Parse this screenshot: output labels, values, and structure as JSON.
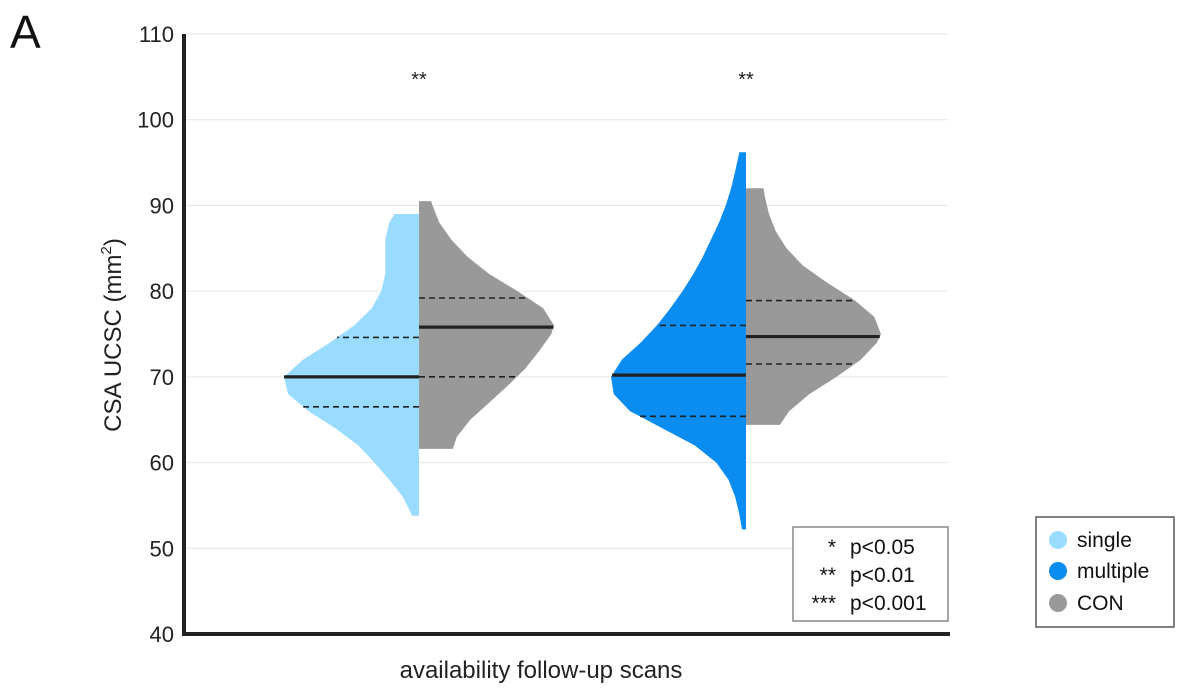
{
  "chart_data": {
    "type": "violin",
    "panel_label": "A",
    "xlabel": "availability follow-up scans",
    "ylabel_main": "CSA UCSC (mm",
    "ylabel_sup": "2",
    "ylabel_close": ")",
    "ylim": [
      40,
      110
    ],
    "yticks": [
      40,
      50,
      60,
      70,
      80,
      90,
      100,
      110
    ],
    "grid": true,
    "legend_position": "right",
    "colors": {
      "single": "#9adcff",
      "multiple": "#0a8cf0",
      "CON": "#999999"
    },
    "series": [
      {
        "name": "single",
        "color": "#9adcff"
      },
      {
        "name": "multiple",
        "color": "#0a8cf0"
      },
      {
        "name": "CON",
        "color": "#999999"
      }
    ],
    "groups": [
      {
        "significance": "**",
        "left": {
          "series": "single",
          "min": 53.8,
          "max": 89.0,
          "median": 70.0,
          "q1": 66.5,
          "q3": 74.6,
          "profile": [
            [
              53.8,
              0.05
            ],
            [
              56,
              0.12
            ],
            [
              58,
              0.22
            ],
            [
              60,
              0.33
            ],
            [
              62,
              0.45
            ],
            [
              64,
              0.62
            ],
            [
              66,
              0.82
            ],
            [
              68,
              0.97
            ],
            [
              70,
              1.0
            ],
            [
              72,
              0.86
            ],
            [
              74,
              0.66
            ],
            [
              76,
              0.48
            ],
            [
              78,
              0.35
            ],
            [
              80,
              0.28
            ],
            [
              82,
              0.25
            ],
            [
              84,
              0.25
            ],
            [
              86,
              0.25
            ],
            [
              88,
              0.22
            ],
            [
              89,
              0.18
            ]
          ]
        },
        "right": {
          "series": "CON",
          "min": 61.6,
          "max": 90.5,
          "median": 75.8,
          "q1": 70.0,
          "q3": 79.2,
          "profile": [
            [
              61.6,
              0.25
            ],
            [
              63,
              0.28
            ],
            [
              65,
              0.38
            ],
            [
              67,
              0.52
            ],
            [
              69,
              0.66
            ],
            [
              71,
              0.79
            ],
            [
              73,
              0.89
            ],
            [
              75,
              0.98
            ],
            [
              76,
              1.0
            ],
            [
              78,
              0.92
            ],
            [
              80,
              0.73
            ],
            [
              82,
              0.52
            ],
            [
              84,
              0.36
            ],
            [
              86,
              0.24
            ],
            [
              88,
              0.15
            ],
            [
              90,
              0.1
            ],
            [
              90.5,
              0.09
            ]
          ]
        }
      },
      {
        "significance": "**",
        "left": {
          "series": "multiple",
          "min": 52.2,
          "max": 96.2,
          "median": 70.2,
          "q1": 65.4,
          "q3": 76.0,
          "profile": [
            [
              52.2,
              0.03
            ],
            [
              54,
              0.05
            ],
            [
              56,
              0.08
            ],
            [
              58,
              0.13
            ],
            [
              60,
              0.22
            ],
            [
              62,
              0.38
            ],
            [
              64,
              0.62
            ],
            [
              66,
              0.86
            ],
            [
              68,
              0.98
            ],
            [
              70,
              1.0
            ],
            [
              72,
              0.92
            ],
            [
              74,
              0.78
            ],
            [
              76,
              0.66
            ],
            [
              78,
              0.56
            ],
            [
              80,
              0.47
            ],
            [
              82,
              0.39
            ],
            [
              84,
              0.32
            ],
            [
              86,
              0.26
            ],
            [
              88,
              0.2
            ],
            [
              90,
              0.15
            ],
            [
              92,
              0.11
            ],
            [
              94,
              0.08
            ],
            [
              96.2,
              0.05
            ]
          ]
        },
        "right": {
          "series": "CON",
          "min": 64.4,
          "max": 92.0,
          "median": 74.7,
          "q1": 71.5,
          "q3": 78.9,
          "profile": [
            [
              64.4,
              0.25
            ],
            [
              66,
              0.32
            ],
            [
              68,
              0.47
            ],
            [
              70,
              0.67
            ],
            [
              72,
              0.85
            ],
            [
              74,
              0.97
            ],
            [
              75,
              1.0
            ],
            [
              77,
              0.95
            ],
            [
              79,
              0.8
            ],
            [
              81,
              0.6
            ],
            [
              83,
              0.42
            ],
            [
              85,
              0.3
            ],
            [
              87,
              0.22
            ],
            [
              89,
              0.17
            ],
            [
              91,
              0.14
            ],
            [
              92,
              0.13
            ]
          ]
        }
      }
    ]
  },
  "significance_key": [
    {
      "stars": "*",
      "text": "p<0.05"
    },
    {
      "stars": "**",
      "text": "p<0.01"
    },
    {
      "stars": "***",
      "text": "p<0.001"
    }
  ]
}
